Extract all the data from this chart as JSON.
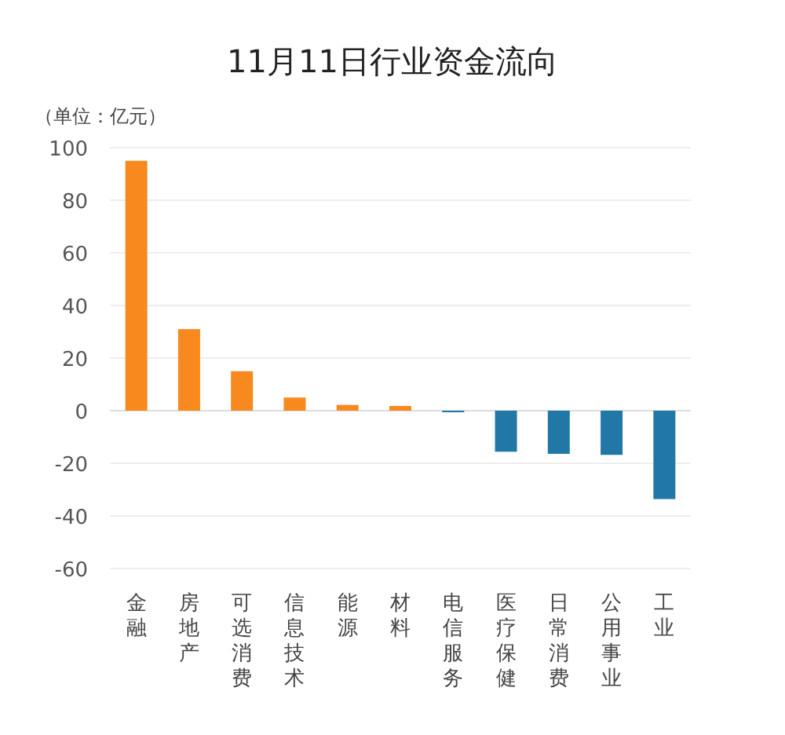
{
  "chart_data": {
    "type": "bar",
    "title": "11月11日行业资金流向",
    "ylabel": "（单位：亿元）",
    "categories": [
      "金融",
      "房地产",
      "可选消费",
      "信息技术",
      "能源",
      "材料",
      "电信服务",
      "医疗保健",
      "日常消费",
      "公用事业",
      "工业"
    ],
    "values": [
      95,
      31,
      15,
      5,
      2.2,
      1.8,
      -0.6,
      -15.6,
      -16.4,
      -16.8,
      -33.6
    ],
    "colors": [
      "#f7891f",
      "#f7891f",
      "#f7891f",
      "#f7891f",
      "#f7891f",
      "#f7891f",
      "#2178a6",
      "#2178a6",
      "#2178a6",
      "#2178a6",
      "#2178a6"
    ],
    "ylim": [
      -60,
      100
    ],
    "yticks": [
      -60,
      -40,
      -20,
      0,
      20,
      40,
      60,
      80,
      100
    ],
    "grid": "y"
  }
}
